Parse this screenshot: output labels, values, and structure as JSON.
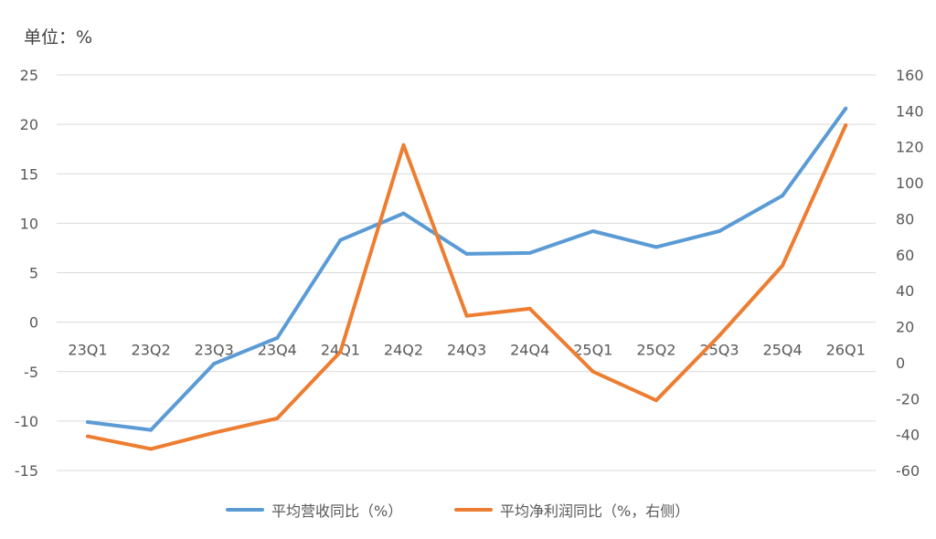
{
  "unit_label": "单位：%",
  "colors": {
    "revenue": "#5B9BD5",
    "profit": "#ED7D31",
    "grid": "#D9D9D9",
    "tick": "#595959"
  },
  "chart_data": {
    "type": "line",
    "categories": [
      "23Q1",
      "23Q2",
      "23Q3",
      "23Q4",
      "24Q1",
      "24Q2",
      "24Q3",
      "24Q4",
      "25Q1",
      "25Q2",
      "25Q3",
      "25Q4",
      "26Q1"
    ],
    "y_left": {
      "range": [
        -15,
        25
      ],
      "ticks": [
        25,
        20,
        15,
        10,
        5,
        0,
        -5,
        -10,
        -15
      ]
    },
    "y_right": {
      "range": [
        -60,
        160
      ],
      "ticks": [
        160,
        140,
        120,
        100,
        80,
        60,
        40,
        20,
        0,
        -20,
        -40,
        -60
      ]
    },
    "grid": true,
    "legend_position": "bottom",
    "series": [
      {
        "name": "平均营收同比（%）",
        "axis": "left",
        "color": "#5B9BD5",
        "values": [
          -10.1,
          -10.9,
          -4.2,
          -1.6,
          8.3,
          11.0,
          6.9,
          7.0,
          9.2,
          7.6,
          9.2,
          12.8,
          21.6
        ]
      },
      {
        "name": "平均净利润同比（%，右侧）",
        "axis": "right",
        "color": "#ED7D31",
        "values": [
          -41,
          -48,
          -39,
          -31,
          6,
          121,
          26,
          30,
          -5,
          -21,
          15,
          54,
          132
        ]
      }
    ]
  }
}
